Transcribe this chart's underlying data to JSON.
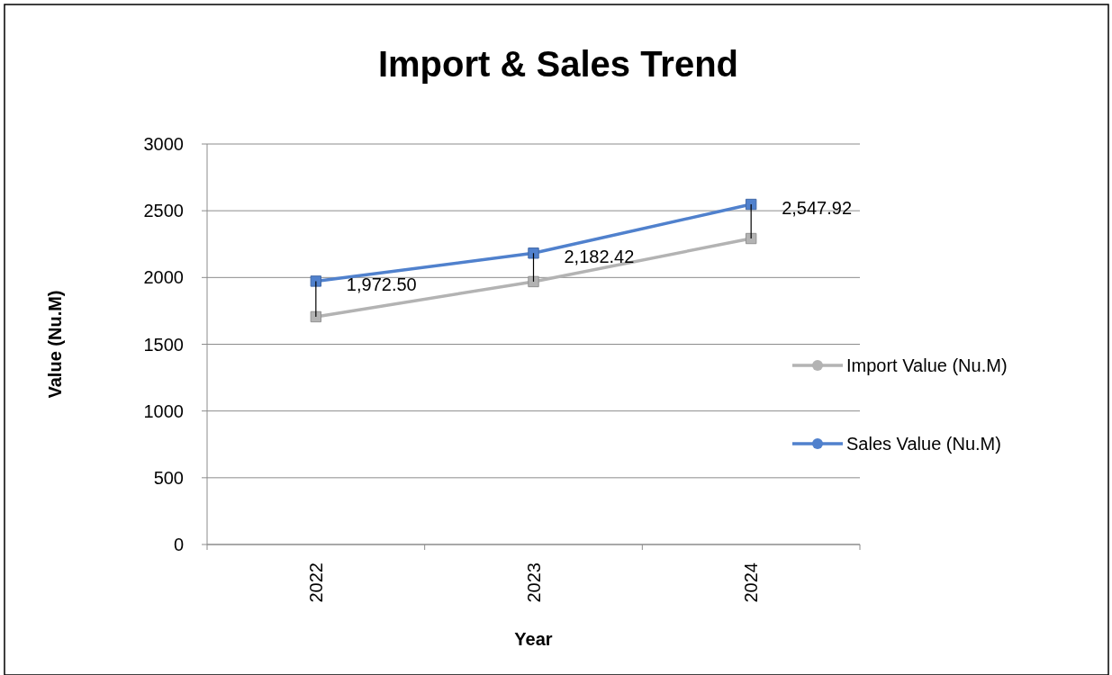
{
  "chart_data": {
    "type": "line",
    "title": "Import & Sales Trend",
    "xlabel": "Year",
    "ylabel": "Value (Nu.M)",
    "categories": [
      "2022",
      "2023",
      "2024"
    ],
    "ylim": [
      0,
      3000
    ],
    "yticks": [
      0,
      500,
      1000,
      1500,
      2000,
      2500,
      3000
    ],
    "grid": "y",
    "legend": "right",
    "marker": "square",
    "line_style": "solid",
    "series": [
      {
        "name": "Import Value (Nu.M)",
        "color": "#b3b3b3",
        "values": [
          1706,
          1969,
          2292
        ]
      },
      {
        "name": "Sales Value (Nu.M)",
        "color": "#5081cd",
        "values": [
          1972.5,
          2182.42,
          2547.92
        ],
        "value_labels": [
          "1,972.50",
          "2,182.42",
          "2,547.92"
        ],
        "errors": [
          [
            1706,
            1972.5
          ],
          [
            1969,
            2182.42
          ],
          [
            2292,
            2547.92
          ]
        ]
      }
    ]
  }
}
